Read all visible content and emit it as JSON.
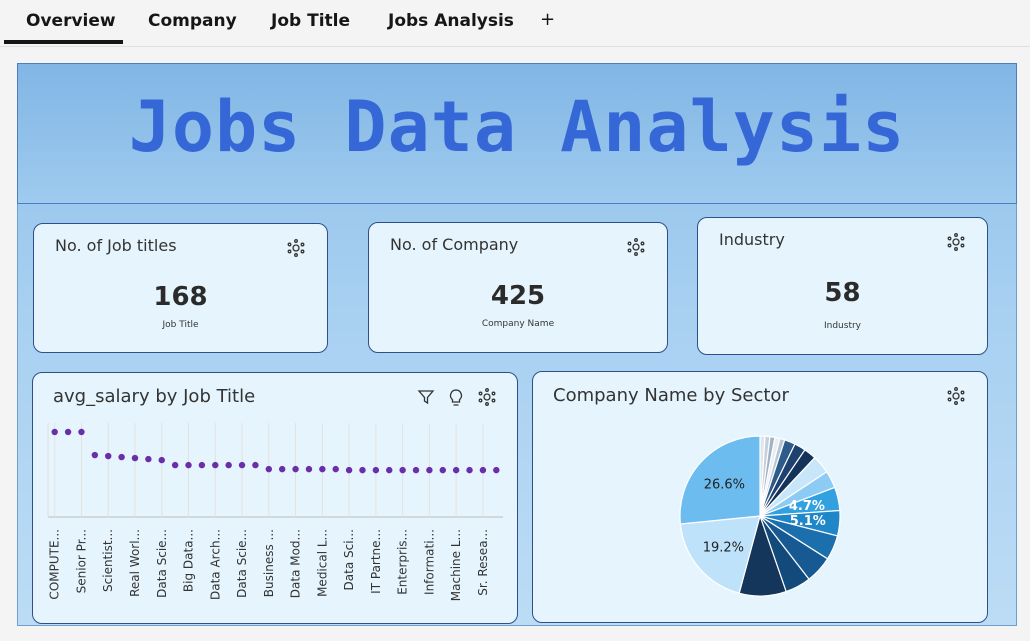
{
  "tabs": [
    "Overview",
    "Company",
    "Job Title",
    "Jobs Analysis",
    "+"
  ],
  "header": {
    "title": "Jobs Data Analysis"
  },
  "kpis": [
    {
      "title": "No. of Job titles",
      "value": 168,
      "label": "Job Title"
    },
    {
      "title": "No. of Company",
      "value": 425,
      "label": "Company Name"
    },
    {
      "title": "Industry",
      "value": 58,
      "label": "Industry"
    }
  ],
  "chart_data": [
    {
      "type": "dot",
      "title": "avg_salary by Job Title",
      "categories": [
        "COMPUTE...",
        null,
        "Senior Pr...",
        null,
        "Scientist...",
        null,
        "Real Worl...",
        null,
        "Data Scie...",
        null,
        "Big Data...",
        null,
        "Data Arch...",
        null,
        "Data Scie...",
        null,
        "Business ...",
        null,
        "Data Mod...",
        null,
        "Medical L...",
        null,
        "Data Sci...",
        null,
        "IT Partne...",
        null,
        "Enterpris...",
        null,
        "Informati...",
        null,
        "Machine L...",
        null,
        "Sr. Resea...",
        null
      ],
      "values": [
        254,
        254,
        254,
        185,
        182,
        179,
        176,
        173,
        170,
        155,
        155,
        155,
        155,
        155,
        155,
        155,
        143,
        143,
        143,
        143,
        143,
        143,
        140,
        140,
        140,
        140,
        140,
        140,
        140,
        140,
        140,
        140,
        140,
        140
      ],
      "color": "#6a2fa8",
      "ylim": [
        0,
        270
      ]
    },
    {
      "type": "pie",
      "title": "Company Name by Sector",
      "values": [
        1,
        1,
        1,
        1,
        1,
        2.2,
        2.3,
        2.5,
        3.7,
        3.5,
        4.7,
        5.1,
        5,
        5.5,
        5.2,
        9.5,
        19.2,
        26.6
      ],
      "value_labels": [
        null,
        null,
        null,
        null,
        null,
        null,
        null,
        null,
        null,
        null,
        "4.7%",
        "5.1%",
        null,
        null,
        null,
        null,
        "19.2%",
        "26.6%"
      ],
      "colors": [
        "#dfe6ee",
        "#c7d0da",
        "#9fb2c8",
        "#e9eef4",
        "#b7c6d6",
        "#2d5b8a",
        "#1d4270",
        "#13335a",
        "#c8e6fa",
        "#8ccbf3",
        "#33a1e0",
        "#1f86c8",
        "#1c6fad",
        "#175a93",
        "#134a7c",
        "#14365b",
        "#bfe2fb",
        "#6cbcf0"
      ]
    }
  ]
}
